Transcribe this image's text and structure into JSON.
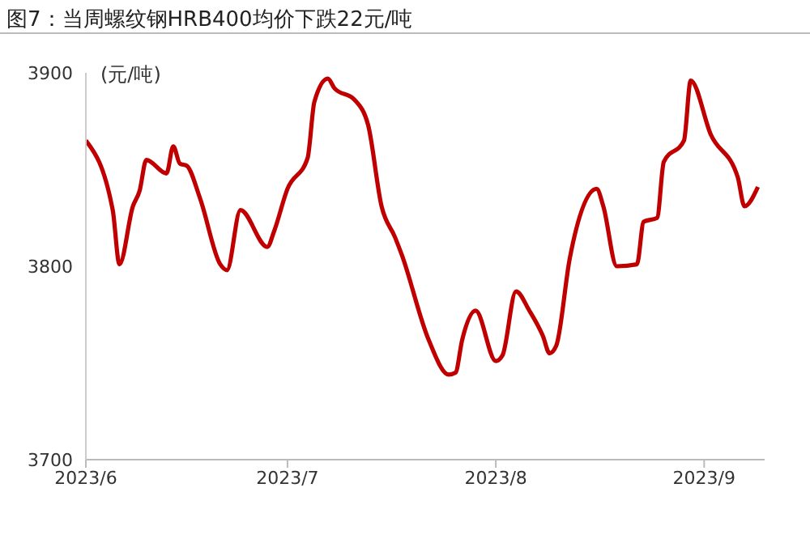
{
  "chart_data": {
    "type": "line",
    "title": "图7：当周螺纹钢HRB400均价下跌22元/吨",
    "ylabel": "(元/吨)",
    "x": [
      "2023-06-01",
      "2023-06-05",
      "2023-06-06",
      "2023-06-08",
      "2023-06-09",
      "2023-06-10",
      "2023-06-13",
      "2023-06-14",
      "2023-06-15",
      "2023-06-16",
      "2023-06-18",
      "2023-06-21",
      "2023-06-22",
      "2023-06-24",
      "2023-06-28",
      "2023-06-29",
      "2023-07-01",
      "2023-07-04",
      "2023-07-05",
      "2023-07-07",
      "2023-07-08",
      "2023-07-11",
      "2023-07-13",
      "2023-07-15",
      "2023-07-17",
      "2023-07-18",
      "2023-07-22",
      "2023-07-25",
      "2023-07-26",
      "2023-07-27",
      "2023-07-29",
      "2023-08-01",
      "2023-08-02",
      "2023-08-04",
      "2023-08-06",
      "2023-08-08",
      "2023-08-09",
      "2023-08-10",
      "2023-08-12",
      "2023-08-16",
      "2023-08-17",
      "2023-08-19",
      "2023-08-22",
      "2023-08-23",
      "2023-08-25",
      "2023-08-26",
      "2023-08-29",
      "2023-08-30",
      "2023-09-02",
      "2023-09-06",
      "2023-09-07",
      "2023-09-09"
    ],
    "series": [
      {
        "color": "#c00000",
        "values": [
          3865,
          3829,
          3801,
          3831,
          3839,
          3855,
          3848,
          3862,
          3853,
          3852,
          3835,
          3801,
          3798,
          3829,
          3810,
          3818,
          3840,
          3856,
          3885,
          3897,
          3892,
          3886,
          3873,
          3831,
          3815,
          3806,
          3762,
          3744,
          3745,
          3762,
          3777,
          3751,
          3754,
          3787,
          3777,
          3764,
          3755,
          3759,
          3804,
          3840,
          3831,
          3800,
          3801,
          3823,
          3825,
          3854,
          3865,
          3896,
          3868,
          3846,
          3831,
          3841
        ]
      }
    ],
    "xlim": [
      "2023-06-01",
      "2023-09-10"
    ],
    "xticks": [
      {
        "value": "2023-06-01",
        "label": "2023/6"
      },
      {
        "value": "2023-07-01",
        "label": "2023/7"
      },
      {
        "value": "2023-08-01",
        "label": "2023/8"
      },
      {
        "value": "2023-09-01",
        "label": "2023/9"
      }
    ],
    "ylim": [
      3700,
      3900
    ],
    "yticks": [
      3700,
      3800,
      3900
    ],
    "grid": false,
    "legend": false,
    "marker": "none",
    "line_style": "solid"
  }
}
